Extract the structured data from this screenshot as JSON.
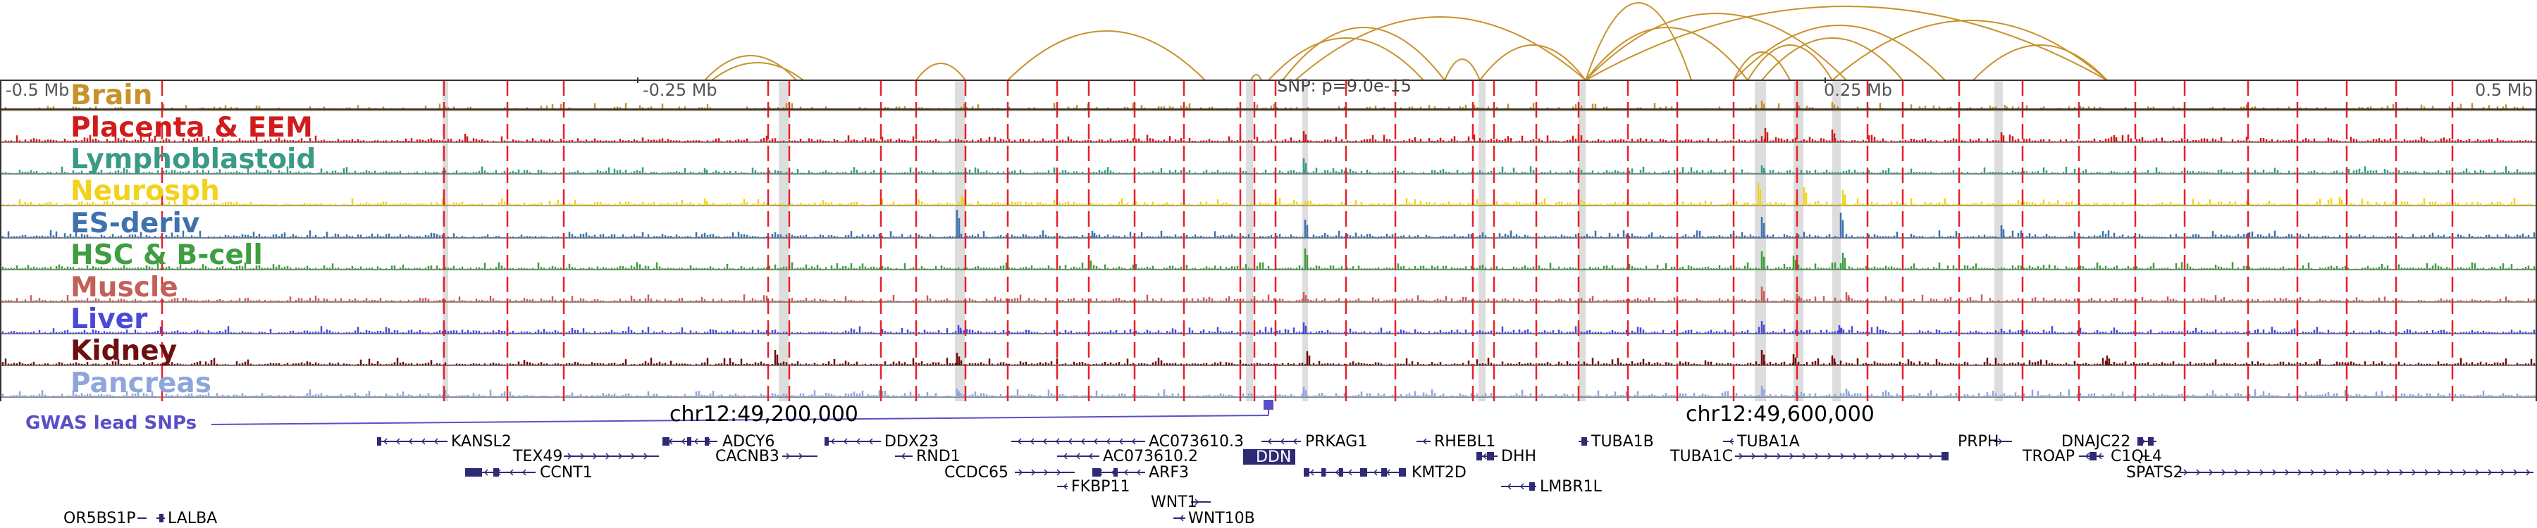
{
  "scale": {
    "left_label": "-0.5 Mb",
    "mid_left_label": "-0.25 Mb",
    "mid_right_label": "0.25 Mb",
    "right_label": "0.5 Mb"
  },
  "snp_label": "SNP: p=9.0e-15",
  "tracks": [
    {
      "label": "Brain",
      "color": "#c8922b"
    },
    {
      "label": "Placenta & EEM",
      "color": "#d01c1c"
    },
    {
      "label": "Lymphoblastoid",
      "color": "#3a9a86"
    },
    {
      "label": "Neurosph",
      "color": "#f2d21a"
    },
    {
      "label": "ES-deriv",
      "color": "#3f72ad"
    },
    {
      "label": "HSC & B-cell",
      "color": "#3f9e3f"
    },
    {
      "label": "Muscle",
      "color": "#c4605a"
    },
    {
      "label": "Liver",
      "color": "#4a4ad8"
    },
    {
      "label": "Kidney",
      "color": "#6e0f0f"
    },
    {
      "label": "Pancreas",
      "color": "#8fa6dc"
    }
  ],
  "gwas_label": "GWAS lead SNPs",
  "coordinates": [
    "chr12:49,200,000",
    "chr12:49,600,000"
  ],
  "genes": {
    "kansl2": "KANSL2",
    "tex49": "TEX49",
    "ccnt1": "CCNT1",
    "adcy6": "ADCY6",
    "cacnb3": "CACNB3",
    "ddx23": "DDX23",
    "rnd1": "RND1",
    "ccdc65": "CCDC65",
    "ac0737103": "AC073610.3",
    "ac0736102": "AC073610.2",
    "arf3": "ARF3",
    "fkbp11": "FKBP11",
    "wnt1": "WNT1",
    "wnt10b": "WNT10B",
    "ddn": "DDN",
    "prkag1": "PRKAG1",
    "kmt2d": "KMT2D",
    "rhebl1": "RHEBL1",
    "dhh": "DHH",
    "lmbr1l": "LMBR1L",
    "tuba1b": "TUBA1B",
    "tuba1a": "TUBA1A",
    "tuba1c": "TUBA1C",
    "prph": "PRPH",
    "troap": "TROAP",
    "dnajc22": "DNAJC22",
    "c1ql4": "C1QL4",
    "spats2": "SPATS2",
    "or5bs1p": "OR5BS1P",
    "lalba": "LALBA"
  },
  "colors": {
    "arc": "#c8922b",
    "marker": "#e8202a",
    "highlight": "#cfcfcf",
    "gene": "#2e2a73",
    "gwas": "#5a4fc7"
  }
}
